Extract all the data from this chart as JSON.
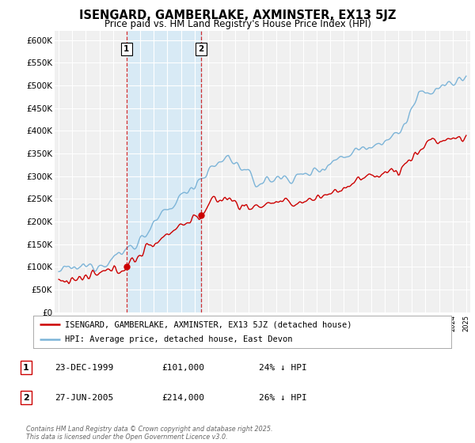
{
  "title": "ISENGARD, GAMBERLAKE, AXMINSTER, EX13 5JZ",
  "subtitle": "Price paid vs. HM Land Registry's House Price Index (HPI)",
  "title_fontsize": 10.5,
  "subtitle_fontsize": 8.5,
  "ylabel_ticks": [
    "£0",
    "£50K",
    "£100K",
    "£150K",
    "£200K",
    "£250K",
    "£300K",
    "£350K",
    "£400K",
    "£450K",
    "£500K",
    "£550K",
    "£600K"
  ],
  "ytick_values": [
    0,
    50000,
    100000,
    150000,
    200000,
    250000,
    300000,
    350000,
    400000,
    450000,
    500000,
    550000,
    600000
  ],
  "ylim": [
    0,
    620000
  ],
  "xlim_start": 1994.7,
  "xlim_end": 2025.3,
  "hpi_color": "#7cb4d8",
  "hpi_fill_color": "#d8eaf5",
  "price_color": "#cc0000",
  "marker1_date": 1999.98,
  "marker1_price": 101000,
  "marker2_date": 2005.49,
  "marker2_price": 214000,
  "legend_entries": [
    "ISENGARD, GAMBERLAKE, AXMINSTER, EX13 5JZ (detached house)",
    "HPI: Average price, detached house, East Devon"
  ],
  "table_rows": [
    {
      "num": "1",
      "date": "23-DEC-1999",
      "price": "£101,000",
      "note": "24% ↓ HPI"
    },
    {
      "num": "2",
      "date": "27-JUN-2005",
      "price": "£214,000",
      "note": "26% ↓ HPI"
    }
  ],
  "footer": "Contains HM Land Registry data © Crown copyright and database right 2025.\nThis data is licensed under the Open Government Licence v3.0.",
  "background_color": "#ffffff",
  "plot_bg_color": "#f0f0f0"
}
